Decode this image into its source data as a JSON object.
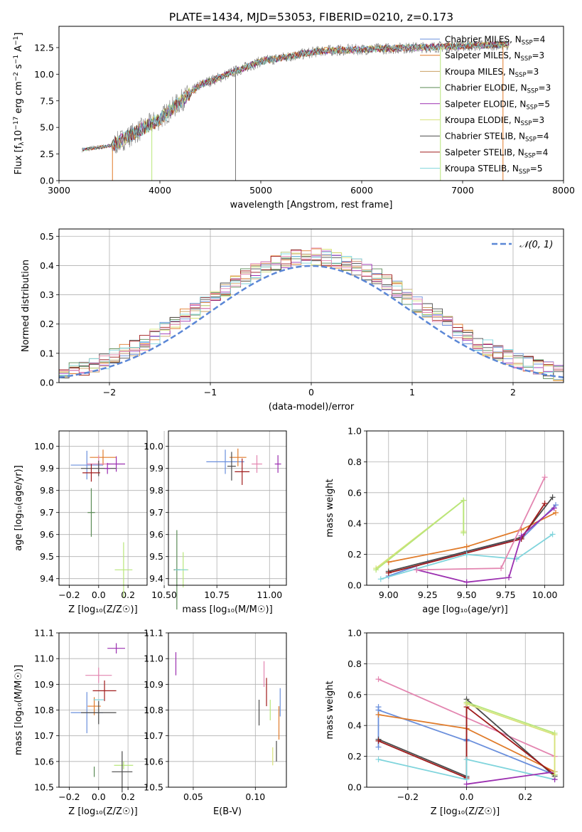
{
  "colors": [
    "#6a8fdc",
    "#e07b2a",
    "#c9a062",
    "#5a8a55",
    "#9b2fb0",
    "#d8e27a",
    "#4a4a4a",
    "#a01b1b",
    "#7fd4dc",
    "#e385b0",
    "#b8e67a",
    "#777777"
  ],
  "chart_data": [
    {
      "id": "spectrum",
      "type": "line",
      "title": "PLATE=1434, MJD=53053, FIBERID=0210, z=0.173",
      "xlabel": "wavelength [Angstrom, rest frame]",
      "ylabel_main": "Flux [f",
      "ylabel_sub": "λ",
      "ylabel_rest": "10",
      "ylabel_exp1": "−17",
      "ylabel_units": " erg cm",
      "ylabel_exp2": "−2",
      "ylabel_units2": " s",
      "ylabel_exp3": "−1",
      "ylabel_units3": " A",
      "ylabel_exp4": "−1",
      "ylabel_close": "]",
      "xlim": [
        3000,
        8000
      ],
      "ylim": [
        0,
        14.5
      ],
      "xticks": [
        "3000",
        "4000",
        "5000",
        "6000",
        "7000",
        "8000"
      ],
      "xtick_values": [
        3000,
        4000,
        5000,
        6000,
        7000,
        8000
      ],
      "yticks": [
        "0.0",
        "2.5",
        "5.0",
        "7.5",
        "10.0",
        "12.5"
      ],
      "ytick_values": [
        0,
        2.5,
        5,
        7.5,
        10,
        12.5
      ],
      "data_range": [
        3230,
        7460
      ],
      "legend": [
        {
          "name": "Chabrier MILES, N",
          "sub": "SSP",
          "val": "=4"
        },
        {
          "name": "Salpeter MILES, N",
          "sub": "SSP",
          "val": "=3"
        },
        {
          "name": "Kroupa MILES, N",
          "sub": "SSP",
          "val": "=3"
        },
        {
          "name": "Chabrier ELODIE, N",
          "sub": "SSP",
          "val": "=3"
        },
        {
          "name": "Salpeter ELODIE, N",
          "sub": "SSP",
          "val": "=5"
        },
        {
          "name": "Kroupa ELODIE, N",
          "sub": "SSP",
          "val": "=3"
        },
        {
          "name": "Chabrier STELIB, N",
          "sub": "SSP",
          "val": "=4"
        },
        {
          "name": "Salpeter STELIB, N",
          "sub": "SSP",
          "val": "=4"
        },
        {
          "name": "Kroupa STELIB, N",
          "sub": "SSP",
          "val": "=5"
        }
      ]
    },
    {
      "id": "residuals",
      "type": "step",
      "xlabel": "(data-model)/error",
      "ylabel": "Normed distribution",
      "xlim": [
        -2.5,
        2.5
      ],
      "ylim": [
        0,
        0.525
      ],
      "xticks": [
        "−2",
        "−1",
        "0",
        "1",
        "2"
      ],
      "xtick_values": [
        -2,
        -1,
        0,
        1,
        2
      ],
      "yticks": [
        "0.0",
        "0.1",
        "0.2",
        "0.3",
        "0.4",
        "0.5"
      ],
      "ytick_values": [
        0,
        0.1,
        0.2,
        0.3,
        0.4,
        0.5
      ],
      "legend": "𝒩(0, 1)"
    },
    {
      "id": "age_vs_z",
      "type": "errorbar",
      "xlabel": "Z [log₁₀(Z/Z☉)]",
      "ylabel": "age  [log₁₀(age/yr)]",
      "xlim": [
        -0.27,
        0.33
      ],
      "ylim": [
        9.37,
        10.07
      ],
      "xticks": [
        "−0.2",
        "0.0",
        "0.2"
      ],
      "xtick_values": [
        -0.2,
        0,
        0.2
      ],
      "yticks": [
        "9.4",
        "9.5",
        "9.6",
        "9.7",
        "9.8",
        "9.9",
        "10.0"
      ],
      "ytick_values": [
        9.4,
        9.5,
        9.6,
        9.7,
        9.8,
        9.9,
        10.0
      ],
      "points": [
        {
          "x": -0.08,
          "y": 9.915,
          "xe": 0.22,
          "ye": 0.13,
          "c": 0
        },
        {
          "x": 0.03,
          "y": 9.95,
          "xe": 0.18,
          "ye": 0.07,
          "c": 1
        },
        {
          "x": 0.0,
          "y": 9.92,
          "xe": 0.16,
          "ye": 0.08,
          "c": 9
        },
        {
          "x": 0.0,
          "y": 9.9,
          "xe": 0.24,
          "ye": 0.07,
          "c": 6
        },
        {
          "x": 0.12,
          "y": 9.92,
          "xe": 0.12,
          "ye": 0.07,
          "c": 4
        },
        {
          "x": -0.05,
          "y": 9.88,
          "xe": 0.12,
          "ye": 0.08,
          "c": 7
        },
        {
          "x": 0.17,
          "y": 9.44,
          "xe": 0.12,
          "ye": 0.25,
          "c": 10
        },
        {
          "x": -0.05,
          "y": 9.7,
          "xe": 0.05,
          "ye": 0.22,
          "c": 3
        },
        {
          "x": 0.06,
          "y": 9.9,
          "xe": 0.04,
          "ye": 0.05,
          "c": 4
        }
      ]
    },
    {
      "id": "age_vs_mass",
      "type": "errorbar",
      "xlabel": "mass [log₁₀(M/M☉)]",
      "xlim": [
        10.52,
        11.08
      ],
      "ylim": [
        9.37,
        10.07
      ],
      "xticks": [
        "10.50",
        "10.75",
        "11.00"
      ],
      "xtick_values": [
        10.5,
        10.75,
        11.0
      ],
      "yticks": [
        "9.4",
        "9.5",
        "9.6",
        "9.7",
        "9.8",
        "9.9",
        "10.0"
      ],
      "ytick_values": [
        9.4,
        9.5,
        9.6,
        9.7,
        9.8,
        9.9,
        10.0
      ],
      "points": [
        {
          "x": 10.79,
          "y": 9.93,
          "xe": 0.18,
          "ye": 0.11,
          "c": 0
        },
        {
          "x": 10.85,
          "y": 9.95,
          "xe": 0.08,
          "ye": 0.08,
          "c": 1
        },
        {
          "x": 10.94,
          "y": 9.92,
          "xe": 0.05,
          "ye": 0.08,
          "c": 9
        },
        {
          "x": 10.82,
          "y": 9.91,
          "xe": 0.04,
          "ye": 0.13,
          "c": 6
        },
        {
          "x": 11.04,
          "y": 9.92,
          "xe": 0.03,
          "ye": 0.08,
          "c": 4
        },
        {
          "x": 10.87,
          "y": 9.885,
          "xe": 0.07,
          "ye": 0.12,
          "c": 7
        },
        {
          "x": 10.59,
          "y": 9.44,
          "xe": 0.05,
          "ye": 0.16,
          "c": 10
        },
        {
          "x": 10.56,
          "y": 9.44,
          "xe": 0.03,
          "ye": 0.36,
          "c": 3
        },
        {
          "x": 10.58,
          "y": 9.44,
          "xe": 0.06,
          "ye": 0.0,
          "c": 8
        }
      ]
    },
    {
      "id": "weight_vs_age",
      "type": "line",
      "xlabel": "age  [log₁₀(age/yr)]",
      "ylabel": "mass weight",
      "xlim": [
        8.86,
        10.12
      ],
      "ylim": [
        0,
        1.0
      ],
      "xticks": [
        "9.00",
        "9.25",
        "9.50",
        "9.75",
        "10.00"
      ],
      "xtick_values": [
        9.0,
        9.25,
        9.5,
        9.75,
        10.0
      ],
      "yticks": [
        "0.0",
        "0.2",
        "0.4",
        "0.6",
        "0.8",
        "1.0"
      ],
      "ytick_values": [
        0,
        0.2,
        0.4,
        0.6,
        0.8,
        1.0
      ],
      "series": [
        {
          "c": 0,
          "x": [
            9.0,
            9.25,
            9.5,
            9.85,
            10.07
          ],
          "y": [
            0.06,
            0.15,
            0.22,
            0.3,
            0.52
          ]
        },
        {
          "c": 1,
          "x": [
            9.0,
            9.5,
            9.85,
            10.07
          ],
          "y": [
            0.15,
            0.25,
            0.36,
            0.47
          ]
        },
        {
          "c": 5,
          "x": [
            8.92,
            9.48,
            9.48,
            9.48
          ],
          "y": [
            0.11,
            0.55,
            0.35,
            0.34
          ]
        },
        {
          "c": 10,
          "x": [
            8.92,
            9.48,
            9.48
          ],
          "y": [
            0.1,
            0.55,
            0.34
          ]
        },
        {
          "c": 6,
          "x": [
            9.0,
            9.85,
            10.05
          ],
          "y": [
            0.09,
            0.31,
            0.57
          ]
        },
        {
          "c": 7,
          "x": [
            9.0,
            9.85,
            10.0
          ],
          "y": [
            0.08,
            0.3,
            0.53
          ]
        },
        {
          "c": 8,
          "x": [
            8.95,
            9.5,
            9.82,
            10.05
          ],
          "y": [
            0.04,
            0.2,
            0.17,
            0.33
          ]
        },
        {
          "c": 4,
          "x": [
            9.18,
            9.5,
            9.77,
            9.85,
            10.06
          ],
          "y": [
            0.1,
            0.02,
            0.05,
            0.32,
            0.5
          ]
        },
        {
          "c": 9,
          "x": [
            9.18,
            9.72,
            10.0
          ],
          "y": [
            0.1,
            0.11,
            0.7
          ]
        }
      ]
    },
    {
      "id": "mass_vs_z",
      "type": "errorbar",
      "xlabel": "Z [log₁₀(Z/Z☉)]",
      "ylabel": "mass [log₁₀(M/M☉)]",
      "xlim": [
        -0.27,
        0.33
      ],
      "ylim": [
        10.5,
        11.1
      ],
      "xticks": [
        "−0.2",
        "0.0",
        "0.2"
      ],
      "xtick_values": [
        -0.2,
        0,
        0.2
      ],
      "yticks": [
        "10.5",
        "10.6",
        "10.7",
        "10.8",
        "10.9",
        "11.0",
        "11.1"
      ],
      "ytick_values": [
        10.5,
        10.6,
        10.7,
        10.8,
        10.9,
        11.0,
        11.1
      ],
      "points": [
        {
          "x": -0.08,
          "y": 10.79,
          "xe": 0.22,
          "ye": 0.16,
          "c": 0
        },
        {
          "x": -0.03,
          "y": 10.815,
          "xe": 0.09,
          "ye": 0.07,
          "c": 1
        },
        {
          "x": 0.0,
          "y": 10.935,
          "xe": 0.18,
          "ye": 0.06,
          "c": 9
        },
        {
          "x": 0.0,
          "y": 10.79,
          "xe": 0.24,
          "ye": 0.09,
          "c": 6
        },
        {
          "x": 0.12,
          "y": 11.04,
          "xe": 0.12,
          "ye": 0.04,
          "c": 4
        },
        {
          "x": 0.04,
          "y": 10.875,
          "xe": 0.16,
          "ye": 0.08,
          "c": 7
        },
        {
          "x": 0.17,
          "y": 10.585,
          "xe": 0.13,
          "ye": 0.03,
          "c": 10
        },
        {
          "x": 0.16,
          "y": 10.56,
          "xe": 0.14,
          "ye": 0.16,
          "c": 6
        },
        {
          "x": -0.03,
          "y": 10.56,
          "xe": 0.0,
          "ye": 0.04,
          "c": 3
        },
        {
          "x": 0.0,
          "y": 10.84,
          "xe": 0.07,
          "ye": 0.0,
          "c": 8
        }
      ]
    },
    {
      "id": "mass_vs_ebv",
      "type": "errorbar",
      "xlabel": "E(B-V)",
      "xlim": [
        0.03,
        0.125
      ],
      "ylim": [
        10.5,
        11.1
      ],
      "xticks": [
        "0.05",
        "0.10"
      ],
      "xtick_values": [
        0.05,
        0.1
      ],
      "yticks": [
        "10.5",
        "10.6",
        "10.7",
        "10.8",
        "10.9",
        "11.0",
        "11.1"
      ],
      "ytick_values": [
        10.5,
        10.6,
        10.7,
        10.8,
        10.9,
        11.0,
        11.1
      ],
      "points": [
        {
          "x": 0.036,
          "y": 10.98,
          "xe": 0.0,
          "ye": 0.09,
          "c": 4
        },
        {
          "x": 0.103,
          "y": 10.79,
          "xe": 0.0,
          "ye": 0.1,
          "c": 6
        },
        {
          "x": 0.107,
          "y": 10.94,
          "xe": 0.0,
          "ye": 0.1,
          "c": 9
        },
        {
          "x": 0.109,
          "y": 10.87,
          "xe": 0.0,
          "ye": 0.11,
          "c": 7
        },
        {
          "x": 0.112,
          "y": 10.8,
          "xe": 0.0,
          "ye": 0.08,
          "c": 10
        },
        {
          "x": 0.114,
          "y": 10.62,
          "xe": 0.0,
          "ye": 0.07,
          "c": 5
        },
        {
          "x": 0.117,
          "y": 10.64,
          "xe": 0.0,
          "ye": 0.08,
          "c": 6
        },
        {
          "x": 0.119,
          "y": 10.75,
          "xe": 0.0,
          "ye": 0.13,
          "c": 1
        },
        {
          "x": 0.12,
          "y": 10.83,
          "xe": 0.0,
          "ye": 0.11,
          "c": 0
        }
      ]
    },
    {
      "id": "weight_vs_z",
      "type": "line",
      "xlabel": "Z [log₁₀(Z/Z☉)]",
      "ylabel": "mass weight",
      "xlim": [
        -0.34,
        0.33
      ],
      "ylim": [
        0,
        1.0
      ],
      "xticks": [
        "−0.2",
        "0.0",
        "0.2"
      ],
      "xtick_values": [
        -0.2,
        0,
        0.2
      ],
      "yticks": [
        "0.0",
        "0.2",
        "0.4",
        "0.6",
        "0.8",
        "1.0"
      ],
      "ytick_values": [
        0,
        0.2,
        0.4,
        0.6,
        0.8,
        1.0
      ],
      "series": [
        {
          "c": 9,
          "x": [
            -0.3,
            0.3
          ],
          "y": [
            0.7,
            0.2
          ]
        },
        {
          "c": 0,
          "x": [
            -0.3,
            -0.3,
            -0.3,
            0.0,
            0.0,
            0.3
          ],
          "y": [
            0.52,
            0.26,
            0.5,
            0.3,
            0.31,
            0.08
          ]
        },
        {
          "c": 1,
          "x": [
            -0.3,
            0.0,
            0.3
          ],
          "y": [
            0.47,
            0.38,
            0.1
          ]
        },
        {
          "c": 6,
          "x": [
            -0.3,
            0.0,
            0.0,
            0.3
          ],
          "y": [
            0.31,
            0.07,
            0.57,
            0.07
          ]
        },
        {
          "c": 7,
          "x": [
            -0.3,
            0.0,
            0.0,
            0.3
          ],
          "y": [
            0.3,
            0.06,
            0.52,
            0.08
          ]
        },
        {
          "c": 8,
          "x": [
            -0.3,
            0.0,
            0.0,
            0.3
          ],
          "y": [
            0.18,
            0.05,
            0.18,
            0.05
          ]
        },
        {
          "c": 4,
          "x": [
            0.0,
            0.3,
            0.3
          ],
          "y": [
            0.02,
            0.1,
            0.05
          ]
        },
        {
          "c": 10,
          "x": [
            0.0,
            0.3,
            0.3
          ],
          "y": [
            0.55,
            0.35,
            0.08
          ]
        },
        {
          "c": 5,
          "x": [
            0.0,
            0.3,
            0.3
          ],
          "y": [
            0.54,
            0.34,
            0.1
          ]
        }
      ]
    }
  ]
}
